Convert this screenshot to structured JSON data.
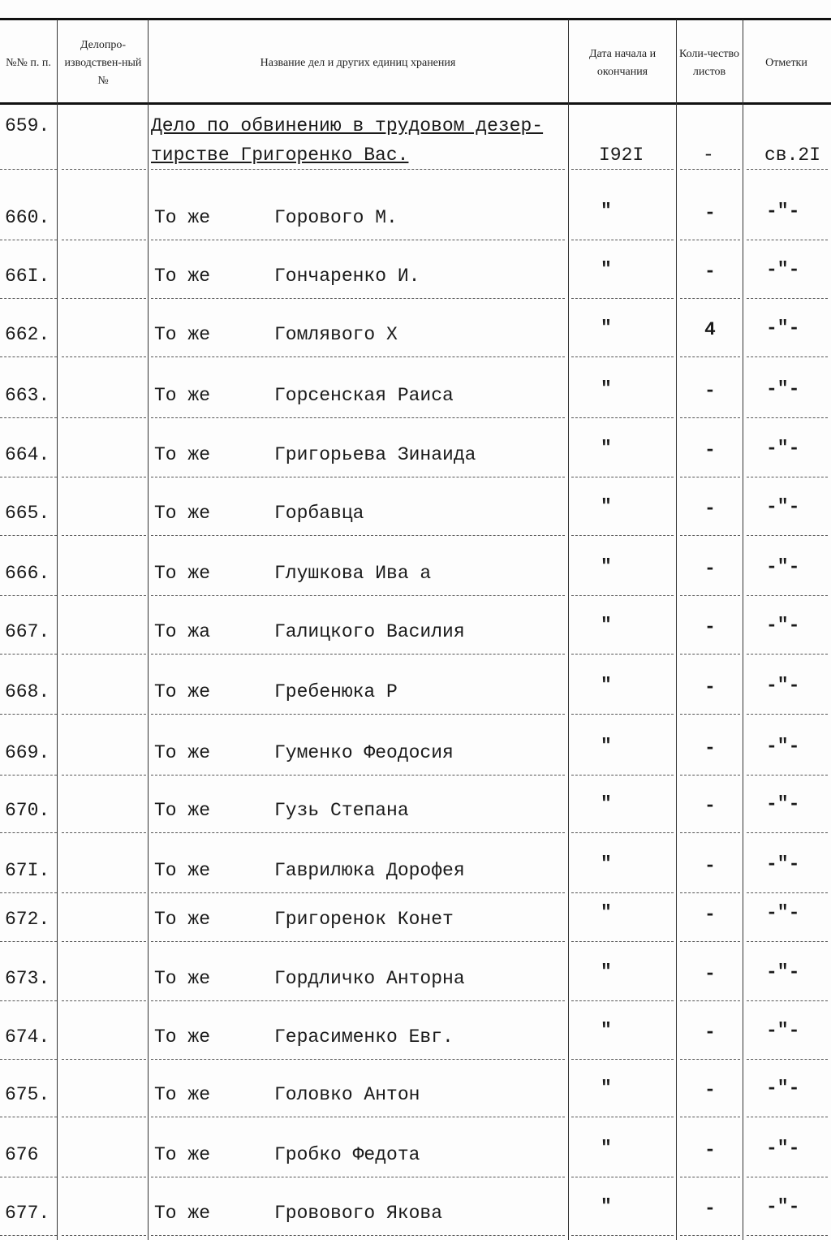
{
  "header": {
    "col_number": "№№ п. п.",
    "col_office_number": "Делопро-изводствен-ный №",
    "col_title": "Название дел и других единиц хранения",
    "col_dates": "Дата начала и окончания",
    "col_sheets": "Коли-чество листов",
    "col_notes": "Отметки"
  },
  "rows": [
    {
      "num": "659.",
      "title": "Дело по обвинению в трудовом дезер-",
      "title2": "тирстве Григоренко Вас.",
      "prefix": "",
      "date": "I92I",
      "sheets": "-",
      "notes": "св.2I"
    },
    {
      "num": "660.",
      "prefix": "То же",
      "title": "Горового М.",
      "date": "\"",
      "sheets": "-",
      "notes": "-\"-"
    },
    {
      "num": "66I.",
      "prefix": "То же",
      "title": "Гончаренко И.",
      "date": "\"",
      "sheets": "-",
      "notes": "-\"-"
    },
    {
      "num": "662.",
      "prefix": "То же",
      "title": "Гомлявого Х",
      "date": "\"",
      "sheets": "4",
      "notes": "-\"-"
    },
    {
      "num": "663.",
      "prefix": "То же",
      "title": "Горсенская Раиса",
      "date": "\"",
      "sheets": "-",
      "notes": "-\"-"
    },
    {
      "num": "664.",
      "prefix": "То же",
      "title": "Григорьева Зинаида",
      "date": "\"",
      "sheets": "-",
      "notes": "-\"-"
    },
    {
      "num": "665.",
      "prefix": "То же",
      "title": "Горбавца",
      "date": "\"",
      "sheets": "-",
      "notes": "-\"-"
    },
    {
      "num": "666.",
      "prefix": "То же",
      "title": "Глушкова Ива а",
      "date": "\"",
      "sheets": "-",
      "notes": "-\"-"
    },
    {
      "num": "667.",
      "prefix": "То жа",
      "title": "Галицкого Василия",
      "date": "\"",
      "sheets": "-",
      "notes": "-\"-"
    },
    {
      "num": "668.",
      "prefix": "То же",
      "title": "Гребенюка Р",
      "date": "\"",
      "sheets": "-",
      "notes": "-\"-"
    },
    {
      "num": "669.",
      "prefix": "То же",
      "title": "Гуменко Феодосия",
      "date": "\"",
      "sheets": "-",
      "notes": "-\"-"
    },
    {
      "num": "670.",
      "prefix": "То же",
      "title": "Гузь Степана",
      "date": "\"",
      "sheets": "-",
      "notes": "-\"-"
    },
    {
      "num": "67I.",
      "prefix": "То же",
      "title": "Гаврилюка Дорофея",
      "date": "\"",
      "sheets": "-",
      "notes": "-\"-"
    },
    {
      "num": "672.",
      "prefix": "То же",
      "title": "Григоренок Конет",
      "date": "\"",
      "sheets": "-",
      "notes": "-\"-"
    },
    {
      "num": "673.",
      "prefix": "То же",
      "title": "Гордличко Анторна",
      "date": "\"",
      "sheets": "-",
      "notes": "-\"-"
    },
    {
      "num": "674.",
      "prefix": "То же",
      "title": "Герасименко Евг.",
      "date": "\"",
      "sheets": "-",
      "notes": "-\"-"
    },
    {
      "num": "675.",
      "prefix": "То же",
      "title": "Головко Антон",
      "date": "\"",
      "sheets": "-",
      "notes": "-\"-"
    },
    {
      "num": "676",
      "prefix": "То же",
      "title": "Гробко Федота",
      "date": "\"",
      "sheets": "-",
      "notes": "-\"-"
    },
    {
      "num": "677.",
      "prefix": "То же",
      "title": "Гровового Якова",
      "date": "\"",
      "sheets": "-",
      "notes": "-\"-"
    }
  ]
}
